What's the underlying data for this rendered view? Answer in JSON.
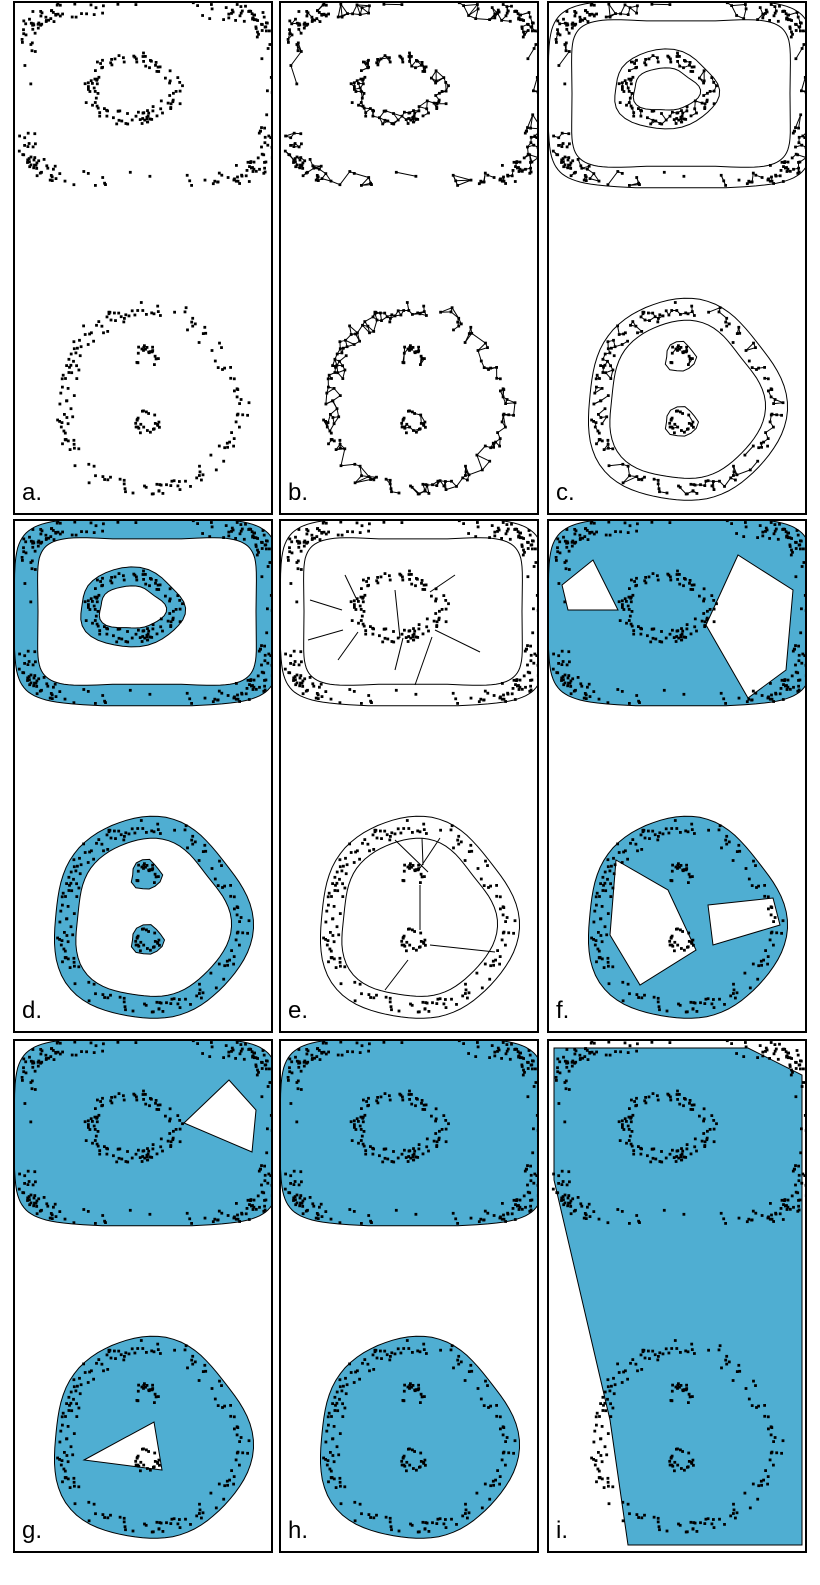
{
  "figure": {
    "fill_color": "#4FAED2",
    "panels": [
      {
        "id": "a",
        "label": "a.",
        "mode": "points"
      },
      {
        "id": "b",
        "label": "b.",
        "mode": "knn-graph"
      },
      {
        "id": "c",
        "label": "c.",
        "mode": "band-graph"
      },
      {
        "id": "d",
        "label": "d.",
        "mode": "filled-rings"
      },
      {
        "id": "e",
        "label": "e.",
        "mode": "bridged-outline"
      },
      {
        "id": "f",
        "label": "f.",
        "mode": "filled-two-holes"
      },
      {
        "id": "g",
        "label": "g.",
        "mode": "filled-one-hole"
      },
      {
        "id": "h",
        "label": "h.",
        "mode": "filled-solid"
      },
      {
        "id": "i",
        "label": "i.",
        "mode": "single-hull"
      }
    ]
  }
}
